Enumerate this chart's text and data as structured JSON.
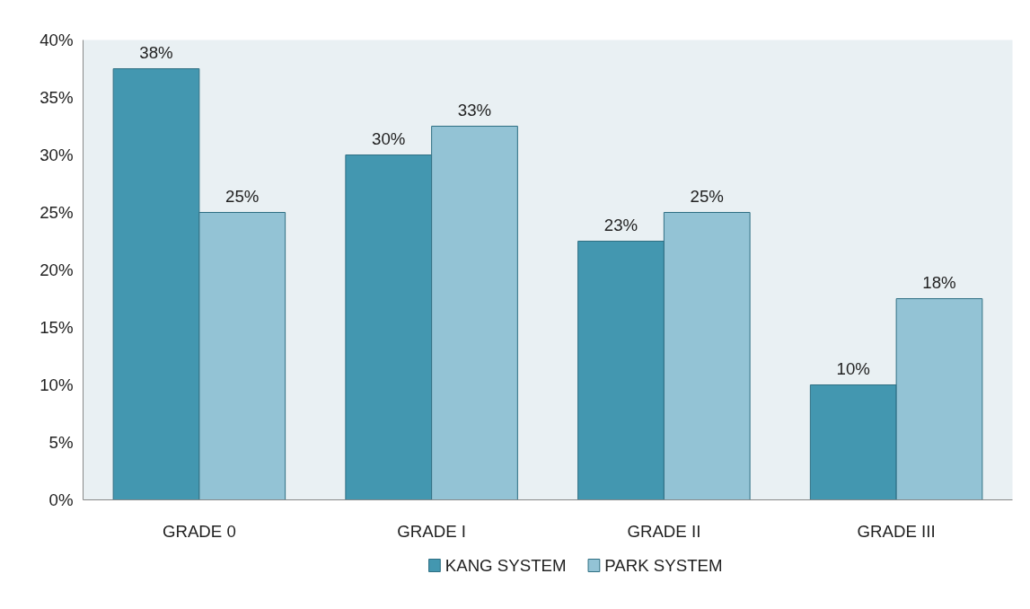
{
  "chart_data": {
    "type": "bar",
    "categories": [
      "GRADE 0",
      "GRADE I",
      "GRADE II",
      "GRADE III"
    ],
    "series": [
      {
        "name": "KANG SYSTEM",
        "color": "#4397b0",
        "values": [
          37.5,
          30,
          22.5,
          10
        ],
        "value_labels": [
          "38%",
          "30%",
          "23%",
          "10%"
        ]
      },
      {
        "name": "PARK  SYSTEM",
        "color": "#93c3d5",
        "values": [
          25,
          32.5,
          25,
          17.5
        ],
        "value_labels": [
          "25%",
          "33%",
          "25%",
          "18%"
        ]
      }
    ],
    "ylim": [
      0,
      40
    ],
    "yticks": [
      {
        "value": 0,
        "label": "0%"
      },
      {
        "value": 5,
        "label": "5%"
      },
      {
        "value": 10,
        "label": "10%"
      },
      {
        "value": 15,
        "label": "15%"
      },
      {
        "value": 20,
        "label": "20%"
      },
      {
        "value": 25,
        "label": "25%"
      },
      {
        "value": 30,
        "label": "30%"
      },
      {
        "value": 35,
        "label": "35%"
      },
      {
        "value": 40,
        "label": "40%"
      }
    ],
    "grid": false,
    "legend": "bottom"
  }
}
